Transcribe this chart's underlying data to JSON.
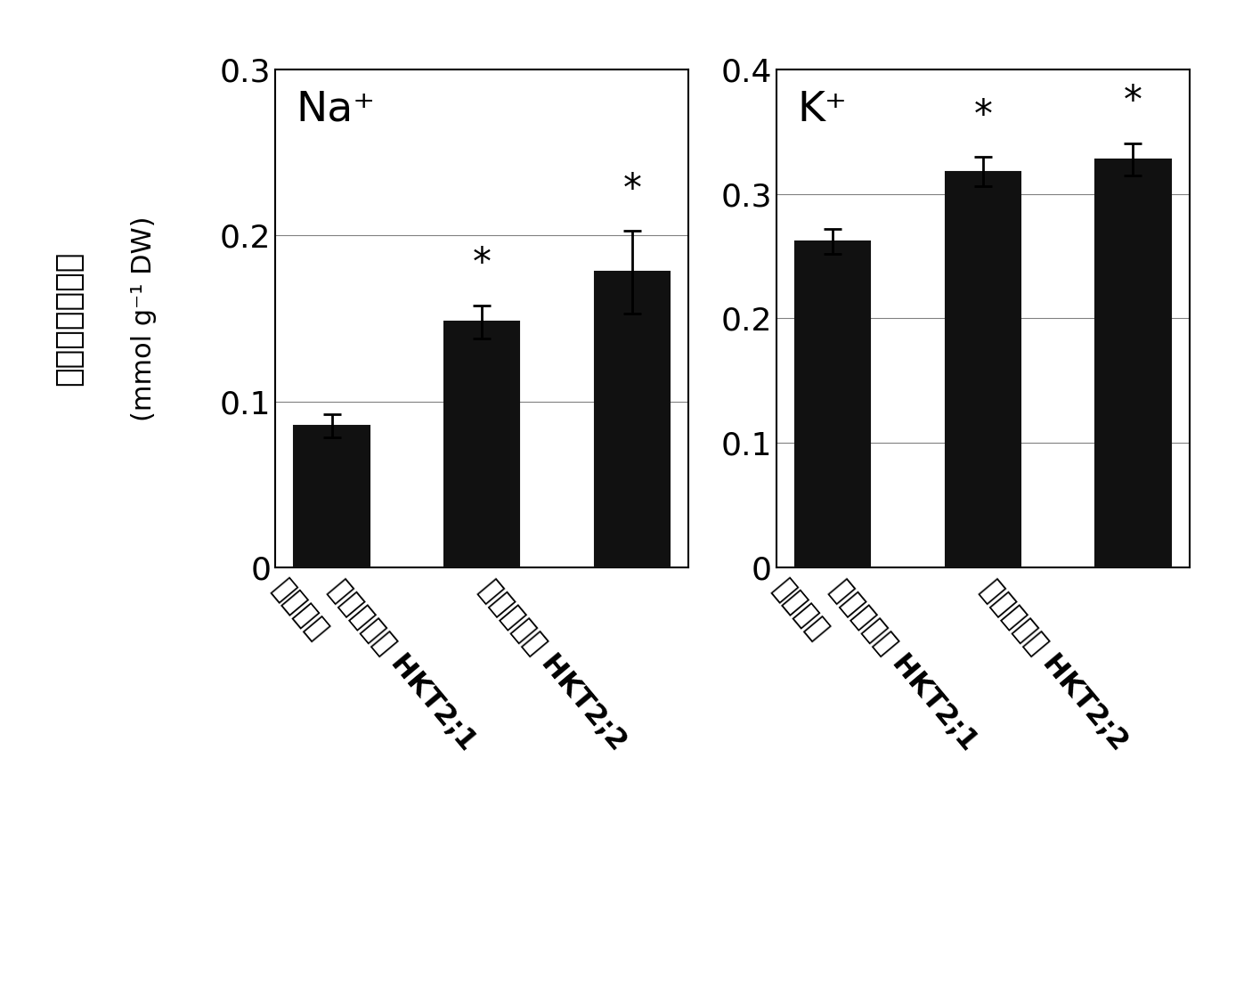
{
  "left_chart": {
    "ion": "Na⁺",
    "categories": [
      "通常植物",
      "ソナレシバ HKT2;1",
      "ソナレシバ HKT2;2"
    ],
    "values": [
      0.085,
      0.148,
      0.178
    ],
    "errors": [
      0.007,
      0.01,
      0.025
    ],
    "ylim": [
      0,
      0.3
    ],
    "yticks": [
      0,
      0.1,
      0.2,
      0.3
    ],
    "significant": [
      false,
      true,
      true
    ]
  },
  "right_chart": {
    "ion": "K⁺",
    "categories": [
      "通常植物",
      "ソナレシバ HKT2;1",
      "ソナレシバ HKT2;2"
    ],
    "values": [
      0.262,
      0.318,
      0.328
    ],
    "errors": [
      0.01,
      0.012,
      0.013
    ],
    "ylim": [
      0,
      0.4
    ],
    "yticks": [
      0,
      0.1,
      0.2,
      0.3,
      0.4
    ],
    "significant": [
      false,
      true,
      true
    ]
  },
  "ylabel_kanji": "葉のイオン含量",
  "ylabel_units": "(mmol g⁻¹ DW)",
  "bar_color": "#111111",
  "bar_width": 0.5,
  "background_color": "#ffffff",
  "tick_fontsize": 26,
  "label_fontsize": 23,
  "star_fontsize": 30,
  "ion_label_fontsize": 34,
  "ylabel_kanji_fontsize": 26,
  "ylabel_units_fontsize": 22
}
